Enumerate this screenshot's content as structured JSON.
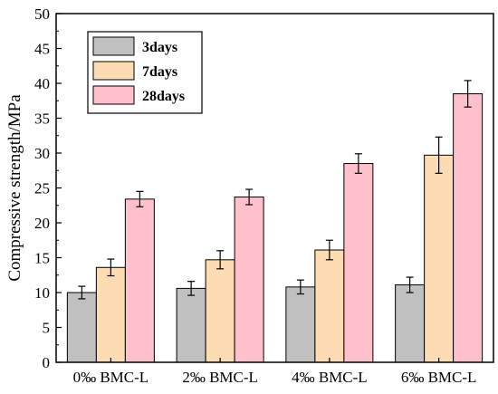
{
  "chart_data": {
    "type": "bar",
    "title": "",
    "xlabel": "",
    "ylabel": "Compressive strength/MPa",
    "ylim": [
      0,
      50
    ],
    "yticks": [
      0,
      5,
      10,
      15,
      20,
      25,
      30,
      35,
      40,
      45,
      50
    ],
    "categories": [
      "0‰ BMC-L",
      "2‰ BMC-L",
      "4‰ BMC-L",
      "6‰ BMC-L"
    ],
    "series": [
      {
        "name": "3days",
        "color": "#c0c0c0",
        "values": [
          10.0,
          10.6,
          10.8,
          11.1
        ],
        "errors": [
          0.9,
          1.0,
          1.0,
          1.1
        ]
      },
      {
        "name": "7days",
        "color": "#fddcb4",
        "values": [
          13.6,
          14.7,
          16.1,
          29.7
        ],
        "errors": [
          1.2,
          1.3,
          1.4,
          2.6
        ]
      },
      {
        "name": "28days",
        "color": "#ffc0cb",
        "values": [
          23.4,
          23.7,
          28.5,
          38.5
        ],
        "errors": [
          1.1,
          1.1,
          1.4,
          1.9
        ]
      }
    ],
    "grid": false,
    "legend_position": "top-left"
  }
}
